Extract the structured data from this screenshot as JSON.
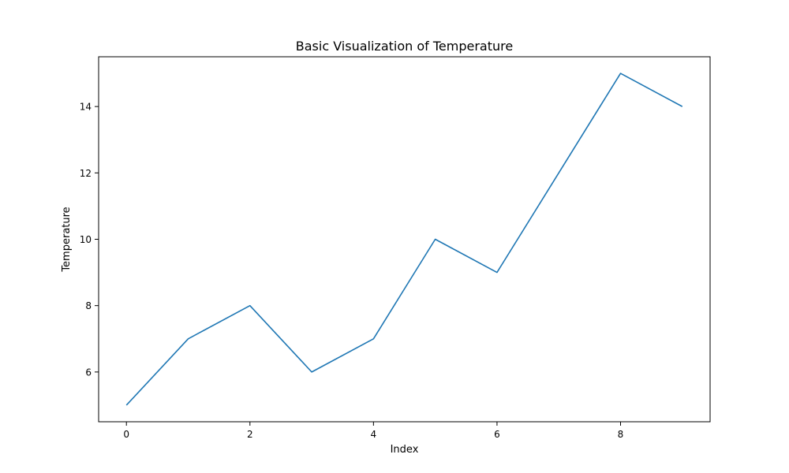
{
  "chart_data": {
    "type": "line",
    "title": "Basic Visualization of Temperature",
    "xlabel": "Index",
    "ylabel": "Temperature",
    "x": [
      0,
      1,
      2,
      3,
      4,
      5,
      6,
      7,
      8,
      9
    ],
    "series": [
      {
        "values": [
          5,
          7,
          8,
          6,
          7,
          10,
          9,
          12,
          15,
          14
        ]
      }
    ],
    "xlim": [
      -0.45,
      9.45
    ],
    "ylim": [
      4.5,
      15.5
    ],
    "xticks": [
      "0",
      "2",
      "4",
      "6",
      "8"
    ],
    "yticks": [
      "6",
      "8",
      "10",
      "12",
      "14"
    ],
    "grid": false,
    "legend": "none",
    "colors": {
      "series": "#1f77b4",
      "axes": "#000000"
    }
  }
}
